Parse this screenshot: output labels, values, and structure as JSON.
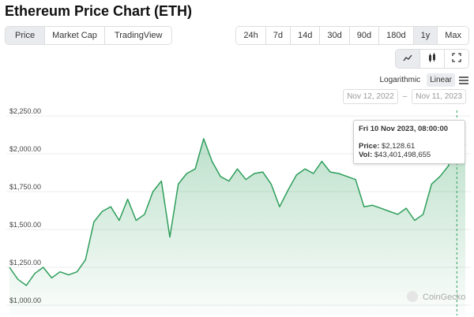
{
  "header": {
    "title": "Ethereum Price Chart (ETH)"
  },
  "tabs": [
    "Price",
    "Market Cap",
    "TradingView"
  ],
  "ranges": [
    "24h",
    "7d",
    "14d",
    "30d",
    "90d",
    "180d",
    "1y",
    "Max"
  ],
  "scale_options": [
    "Logarithmic",
    "Linear"
  ],
  "date_range": {
    "from": "Nov 12, 2022",
    "separator": "–",
    "to": "Nov 11, 2023"
  },
  "tooltip": {
    "date": "Fri 10 Nov 2023, 08:00:00",
    "price_label": "Price:",
    "price": "$2,128.61",
    "vol_label": "Vol:",
    "vol": "$43,401,498,655"
  },
  "watermark": "CoinGecko",
  "chart_data": {
    "type": "area",
    "values": [
      1250,
      1170,
      1130,
      1210,
      1250,
      1180,
      1220,
      1200,
      1220,
      1300,
      1550,
      1620,
      1650,
      1560,
      1700,
      1560,
      1600,
      1750,
      1820,
      1450,
      1800,
      1870,
      1900,
      2100,
      1950,
      1850,
      1820,
      1900,
      1830,
      1870,
      1880,
      1800,
      1650,
      1760,
      1860,
      1900,
      1870,
      1950,
      1880,
      1870,
      1850,
      1830,
      1650,
      1660,
      1640,
      1620,
      1600,
      1640,
      1560,
      1600,
      1800,
      1850,
      1920,
      2128.61,
      2060
    ],
    "color": "#2e9e5b",
    "ylim": [
      932,
      2339
    ],
    "yticks": [
      {
        "value": 1000,
        "label": "$1,000.00"
      },
      {
        "value": 1250,
        "label": "$1,250.00"
      },
      {
        "value": 1500,
        "label": "$1,500.00"
      },
      {
        "value": 1750,
        "label": "$1,750.00"
      },
      {
        "value": 2000,
        "label": "$2,000.00"
      },
      {
        "value": 2250,
        "label": "$2,250.00"
      }
    ],
    "grid": true
  }
}
